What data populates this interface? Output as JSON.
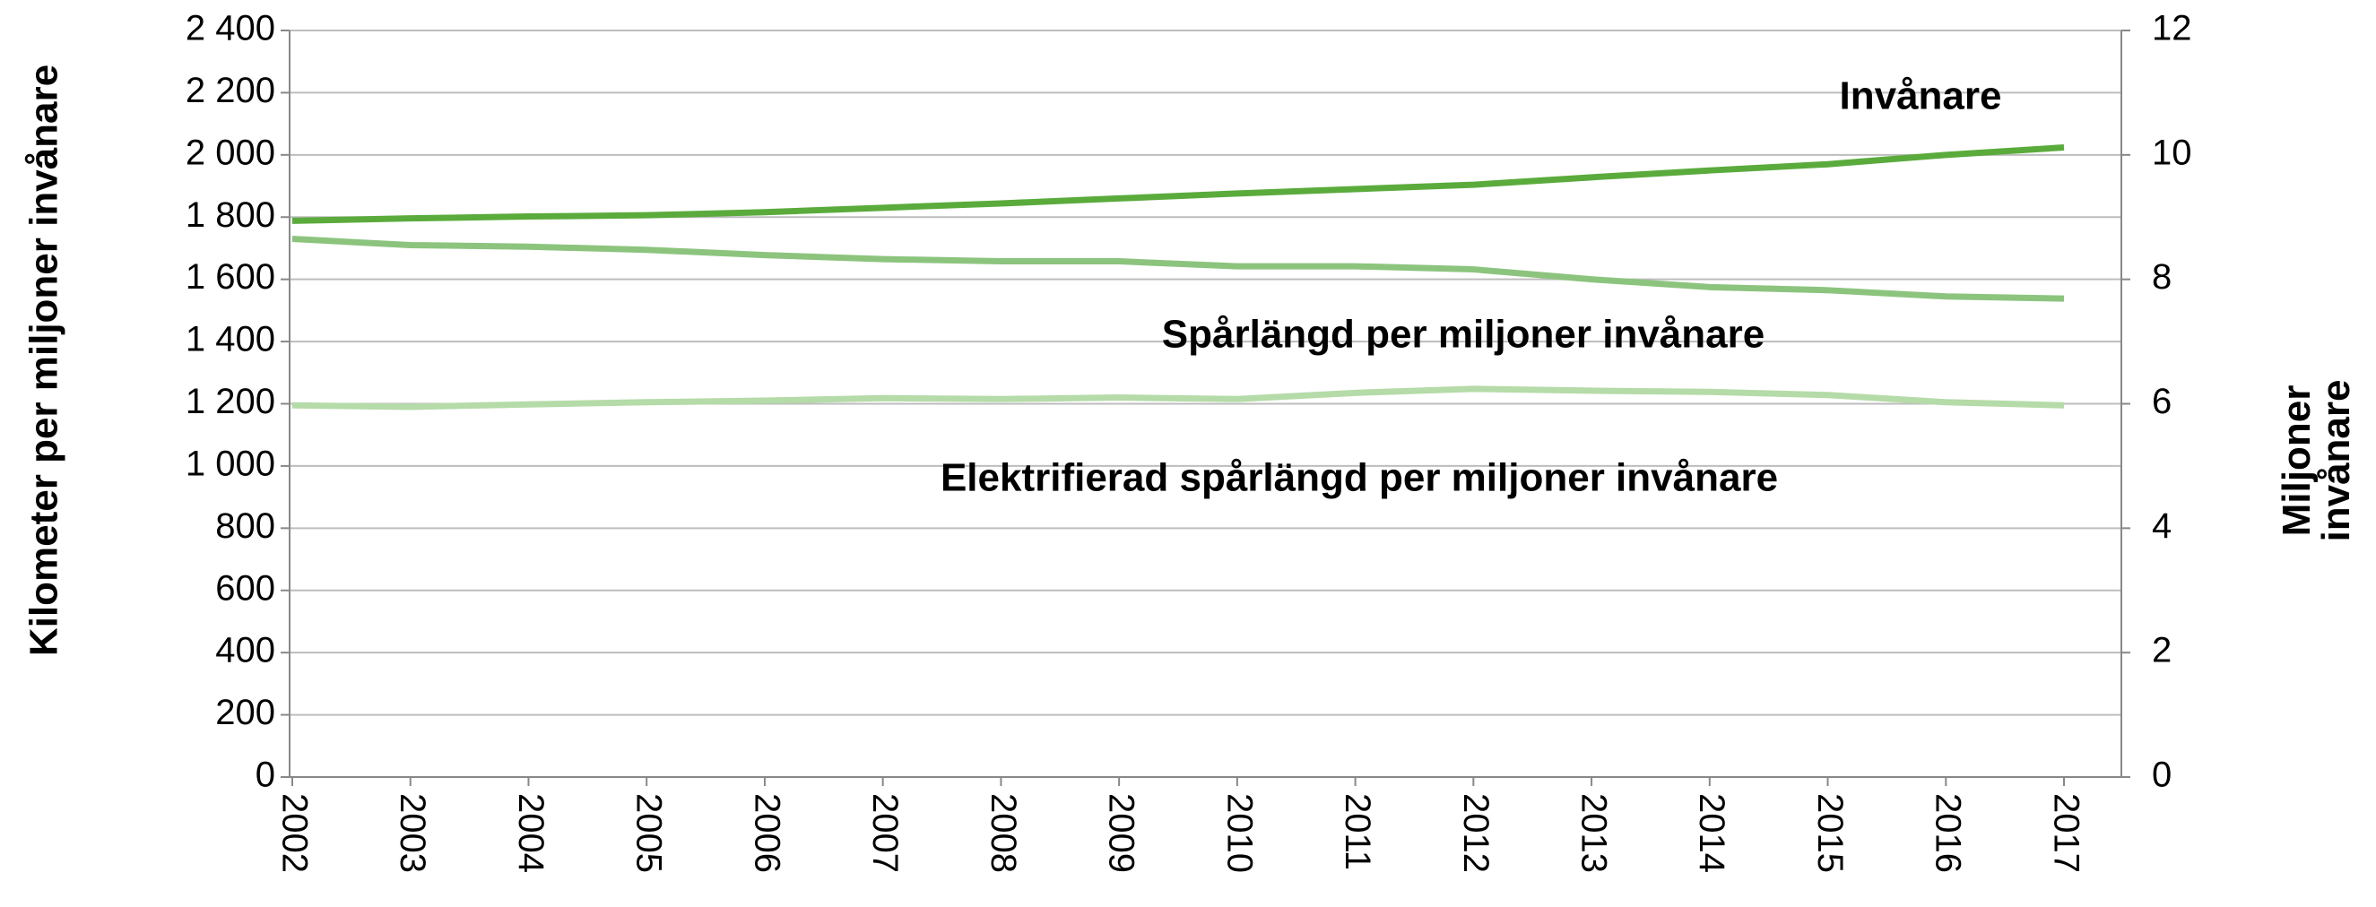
{
  "chart_data": {
    "type": "line",
    "y_label": "Kilometer per miljoner invånare",
    "y2_label": "Miljoner invånare",
    "x": [
      "2002",
      "2003",
      "2004",
      "2005",
      "2006",
      "2007",
      "2008",
      "2009",
      "2010",
      "2011",
      "2012",
      "2013",
      "2014",
      "2015",
      "2016",
      "2017"
    ],
    "series": [
      {
        "name": "Invånare",
        "color": "#5aab3c",
        "axis": "y2",
        "values": [
          8.94,
          8.98,
          9.01,
          9.03,
          9.08,
          9.15,
          9.22,
          9.3,
          9.38,
          9.45,
          9.52,
          9.64,
          9.75,
          9.85,
          10.0,
          10.12
        ]
      },
      {
        "name": "Spårlängd per miljoner invånare",
        "color": "#8cc47e",
        "values": [
          1730,
          1710,
          1705,
          1695,
          1678,
          1665,
          1658,
          1658,
          1642,
          1642,
          1632,
          1600,
          1575,
          1565,
          1545,
          1538
        ]
      },
      {
        "name": "Elektrifierad spårlängd per miljoner invånare",
        "color": "#b5dba8",
        "values": [
          1195,
          1190,
          1198,
          1205,
          1210,
          1218,
          1215,
          1220,
          1215,
          1235,
          1248,
          1242,
          1238,
          1228,
          1205,
          1195
        ]
      }
    ],
    "ylim": [
      0,
      2400
    ],
    "yticks": [
      0,
      200,
      400,
      600,
      800,
      {
        "value": 1000,
        "label": "1 000"
      },
      {
        "value": 1200,
        "label": "1 200"
      },
      {
        "value": 1400,
        "label": "1 400"
      },
      {
        "value": 1600,
        "label": "1 600"
      },
      {
        "value": 1800,
        "label": "1 800"
      },
      {
        "value": 2000,
        "label": "2 000"
      },
      {
        "value": 2200,
        "label": "2 200"
      },
      {
        "value": 2400,
        "label": "2 400"
      }
    ],
    "y2lim": [
      0,
      12
    ],
    "y2ticks": [
      0,
      2,
      4,
      6,
      8,
      10,
      12
    ],
    "grid": true
  }
}
